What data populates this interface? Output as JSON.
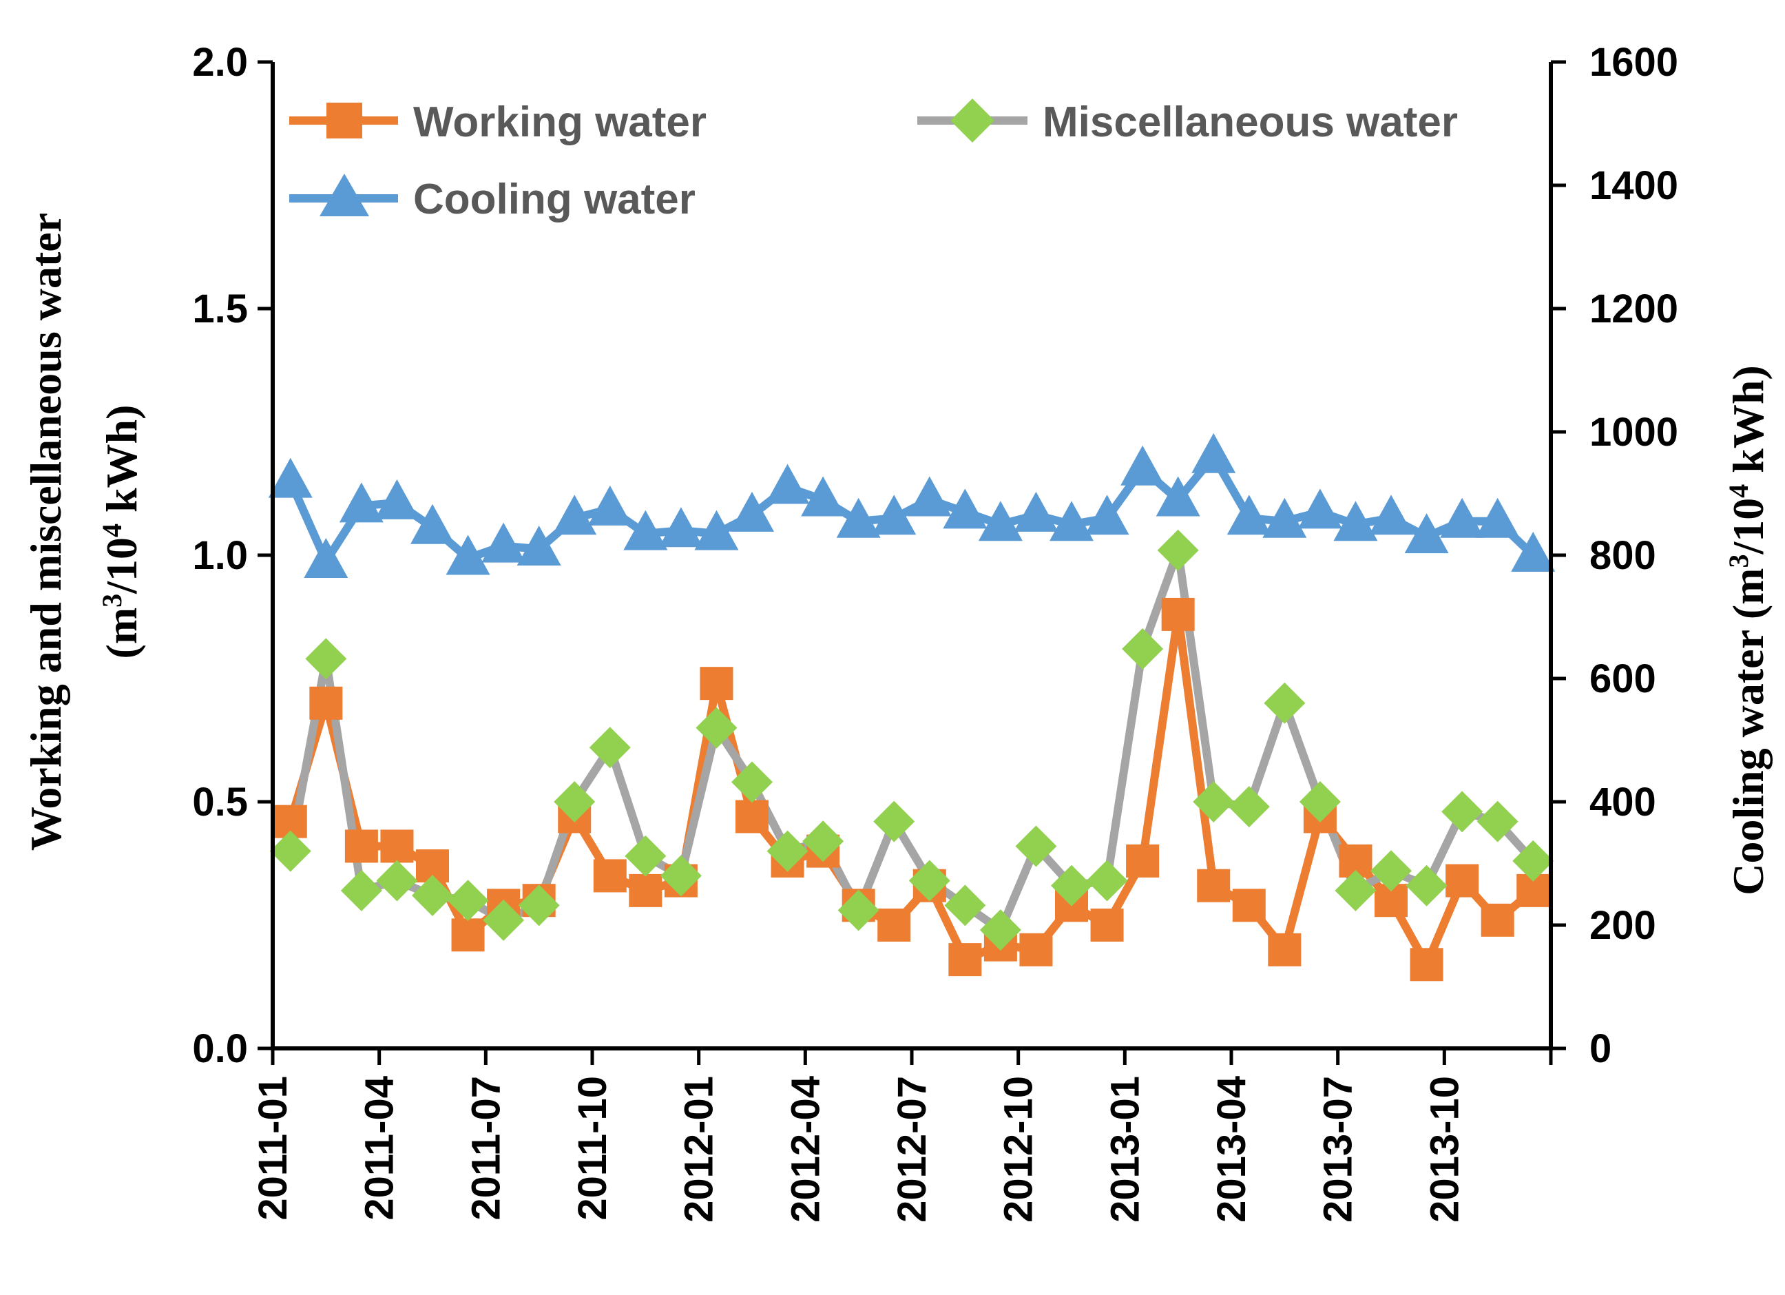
{
  "chart_data": {
    "type": "line",
    "x": [
      "2011-01",
      "2011-02",
      "2011-03",
      "2011-04",
      "2011-05",
      "2011-06",
      "2011-07",
      "2011-08",
      "2011-09",
      "2011-10",
      "2011-11",
      "2011-12",
      "2012-01",
      "2012-02",
      "2012-03",
      "2012-04",
      "2012-05",
      "2012-06",
      "2012-07",
      "2012-08",
      "2012-09",
      "2012-10",
      "2012-11",
      "2012-12",
      "2013-01",
      "2013-02",
      "2013-03",
      "2013-04",
      "2013-05",
      "2013-06",
      "2013-07",
      "2013-08",
      "2013-09",
      "2013-10",
      "2013-11",
      "2013-12"
    ],
    "x_tick_labels": [
      "2011-01",
      "2011-04",
      "2011-07",
      "2011-10",
      "2012-01",
      "2012-04",
      "2012-07",
      "2012-10",
      "2013-01",
      "2013-04",
      "2013-07",
      "2013-10"
    ],
    "left_axis": {
      "title_line1": "Working and miscellaneous water",
      "title_unit_prefix": "(m",
      "title_unit_sup1": "3",
      "title_unit_mid": "/10",
      "title_unit_sup2": "4",
      "title_unit_suffix": " kWh)",
      "ylim": [
        0,
        2.0
      ],
      "ticks": [
        0,
        0.5,
        1.0,
        1.5,
        2.0
      ],
      "tick_labels": [
        "0.0",
        "0.5",
        "1.0",
        "1.5",
        "2.0"
      ]
    },
    "right_axis": {
      "title_prefix": "Cooling water (m",
      "title_sup1": "3",
      "title_mid": "/10",
      "title_sup2": "4",
      "title_suffix": " kWh)",
      "ylim": [
        0,
        1600
      ],
      "ticks": [
        0,
        200,
        400,
        600,
        800,
        1000,
        1200,
        1400,
        1600
      ],
      "tick_labels": [
        "0",
        "200",
        "400",
        "600",
        "800",
        "1000",
        "1200",
        "1400",
        "1600"
      ]
    },
    "series": [
      {
        "name": "Working water",
        "axis": "left",
        "color": "#ED7D31",
        "marker": "square",
        "values": [
          0.46,
          0.7,
          0.41,
          0.41,
          0.37,
          0.23,
          0.29,
          0.3,
          0.47,
          0.35,
          0.32,
          0.34,
          0.74,
          0.47,
          0.38,
          0.4,
          0.29,
          0.25,
          0.33,
          0.18,
          0.21,
          0.2,
          0.29,
          0.25,
          0.38,
          0.88,
          0.33,
          0.29,
          0.2,
          0.47,
          0.38,
          0.3,
          0.17,
          0.34,
          0.26,
          0.32
        ]
      },
      {
        "name": "Miscellaneous water",
        "axis": "left",
        "color": "#A5A5A5",
        "marker_color": "#92D050",
        "marker": "diamond",
        "values": [
          0.4,
          0.79,
          0.32,
          0.34,
          0.31,
          0.3,
          0.26,
          0.29,
          0.5,
          0.61,
          0.39,
          0.35,
          0.65,
          0.54,
          0.4,
          0.42,
          0.28,
          0.46,
          0.34,
          0.29,
          0.24,
          0.41,
          0.33,
          0.34,
          0.81,
          1.01,
          0.5,
          0.49,
          0.7,
          0.5,
          0.32,
          0.36,
          0.33,
          0.48,
          0.46,
          0.38
        ]
      },
      {
        "name": "Cooling water",
        "axis": "right",
        "color": "#5B9BD5",
        "marker": "triangle",
        "values": [
          920,
          790,
          880,
          885,
          845,
          795,
          815,
          810,
          860,
          875,
          835,
          840,
          835,
          865,
          910,
          890,
          855,
          860,
          890,
          870,
          850,
          865,
          850,
          860,
          940,
          890,
          960,
          860,
          855,
          870,
          850,
          860,
          830,
          855,
          855,
          800
        ]
      }
    ],
    "legend": {
      "placement": "top",
      "entries": [
        "Working water",
        "Miscellaneous water",
        "Cooling water"
      ]
    }
  }
}
